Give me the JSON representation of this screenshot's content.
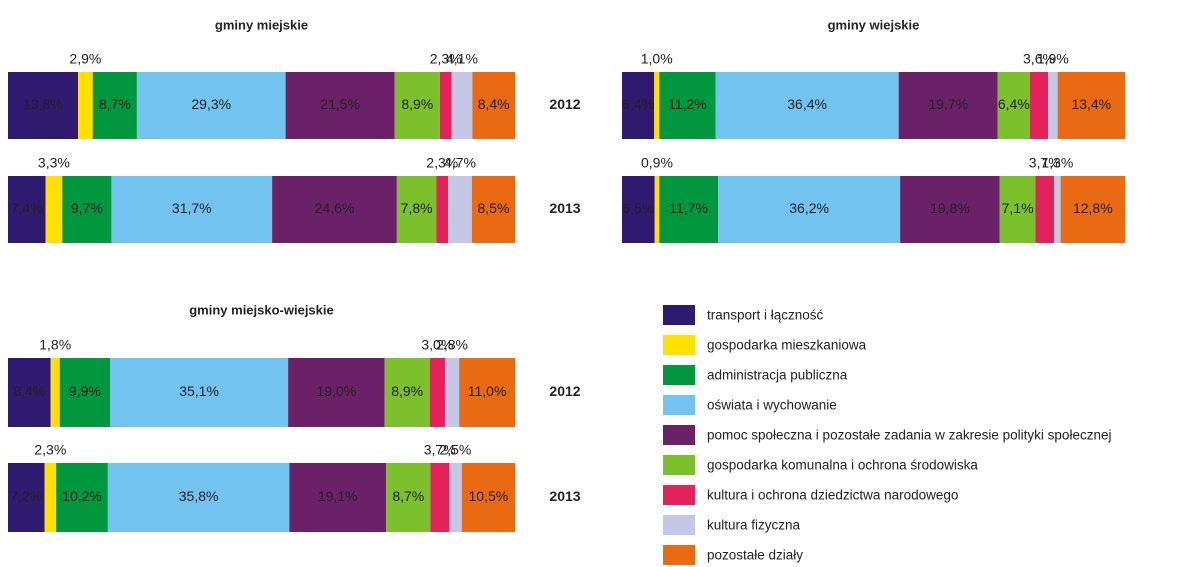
{
  "chart_data": [
    {
      "type": "stacked-bar",
      "title": "gminy miejskie",
      "categories": [
        "2012",
        "2013"
      ],
      "series": [
        {
          "name": "transport i łączność",
          "color": "#2e1a6e",
          "values": [
            13.8,
            7.4
          ],
          "value_labels": [
            "13,8%",
            "7,4%"
          ]
        },
        {
          "name": "gospodarka mieszkaniowa",
          "color": "#ffe000",
          "values": [
            2.9,
            3.3
          ],
          "value_labels": [
            "2,9%",
            "3,3%"
          ]
        },
        {
          "name": "administracja publiczna",
          "color": "#00973f",
          "values": [
            8.7,
            9.7
          ],
          "value_labels": [
            "8,7%",
            "9,7%"
          ]
        },
        {
          "name": "oświata i wychowanie",
          "color": "#72c3ef",
          "values": [
            29.3,
            31.7
          ],
          "value_labels": [
            "29,3%",
            "31,7%"
          ]
        },
        {
          "name": "pomoc społeczna i pozostałe zadania w zakresie polityki społecznej",
          "color": "#6b2167",
          "values": [
            21.5,
            24.6
          ],
          "value_labels": [
            "21,5%",
            "24,6%"
          ]
        },
        {
          "name": "gospodarka komunalna i ochrona środowiska",
          "color": "#7dc02d",
          "values": [
            8.9,
            7.8
          ],
          "value_labels": [
            "8,9%",
            "7,8%"
          ]
        },
        {
          "name": "kultura i ochrona dziedzictwa narodowego",
          "color": "#e3215a",
          "values": [
            2.3,
            2.3
          ],
          "value_labels": [
            "2,3%",
            "2,3%"
          ]
        },
        {
          "name": "kultura fizyczna",
          "color": "#c4c8e6",
          "values": [
            4.1,
            4.7
          ],
          "value_labels": [
            "4,1%",
            "4,7%"
          ]
        },
        {
          "name": "pozostałe działy",
          "color": "#ea6a13",
          "values": [
            8.4,
            8.5
          ],
          "value_labels": [
            "8,4%",
            "8,5%"
          ]
        }
      ]
    },
    {
      "type": "stacked-bar",
      "title": "gminy wiejskie",
      "series": [
        {
          "values": [
            6.4,
            6.5
          ],
          "value_labels": [
            "6,4%",
            "6,5%"
          ]
        },
        {
          "values": [
            1.0,
            0.9
          ],
          "value_labels": [
            "1,0%",
            "0,9%"
          ]
        },
        {
          "values": [
            11.2,
            11.7
          ],
          "value_labels": [
            "11,2%",
            "11,7%"
          ]
        },
        {
          "values": [
            36.4,
            36.2
          ],
          "value_labels": [
            "36,4%",
            "36,2%"
          ]
        },
        {
          "values": [
            19.7,
            19.8
          ],
          "value_labels": [
            "19,7%",
            "19,8%"
          ]
        },
        {
          "values": [
            6.4,
            7.1
          ],
          "value_labels": [
            "6,4%",
            "7,1%"
          ]
        },
        {
          "values": [
            3.6,
            3.7
          ],
          "value_labels": [
            "3,6%",
            "3,7%"
          ]
        },
        {
          "values": [
            1.9,
            1.3
          ],
          "value_labels": [
            "1,9%",
            "1,3%"
          ]
        },
        {
          "values": [
            13.4,
            12.8
          ],
          "value_labels": [
            "13,4%",
            "12,8%"
          ]
        }
      ]
    },
    {
      "type": "stacked-bar",
      "title": "gminy miejsko-wiejskie",
      "categories": [
        "2012",
        "2013"
      ],
      "series": [
        {
          "values": [
            8.4,
            7.2
          ],
          "value_labels": [
            "8,4%",
            "7,2%"
          ]
        },
        {
          "values": [
            1.8,
            2.3
          ],
          "value_labels": [
            "1,8%",
            "2,3%"
          ]
        },
        {
          "values": [
            9.9,
            10.2
          ],
          "value_labels": [
            "9,9%",
            "10,2%"
          ]
        },
        {
          "values": [
            35.1,
            35.8
          ],
          "value_labels": [
            "35,1%",
            "35,8%"
          ]
        },
        {
          "values": [
            19.0,
            19.1
          ],
          "value_labels": [
            "19,0%",
            "19,1%"
          ]
        },
        {
          "values": [
            8.9,
            8.7
          ],
          "value_labels": [
            "8,9%",
            "8,7%"
          ]
        },
        {
          "values": [
            3.0,
            3.7
          ],
          "value_labels": [
            "3,0%",
            "3,7%"
          ]
        },
        {
          "values": [
            2.8,
            2.5
          ],
          "value_labels": [
            "2,8%",
            "2,5%"
          ]
        },
        {
          "values": [
            11.0,
            10.5
          ],
          "value_labels": [
            "11,0%",
            "10,5%"
          ]
        }
      ]
    }
  ]
}
